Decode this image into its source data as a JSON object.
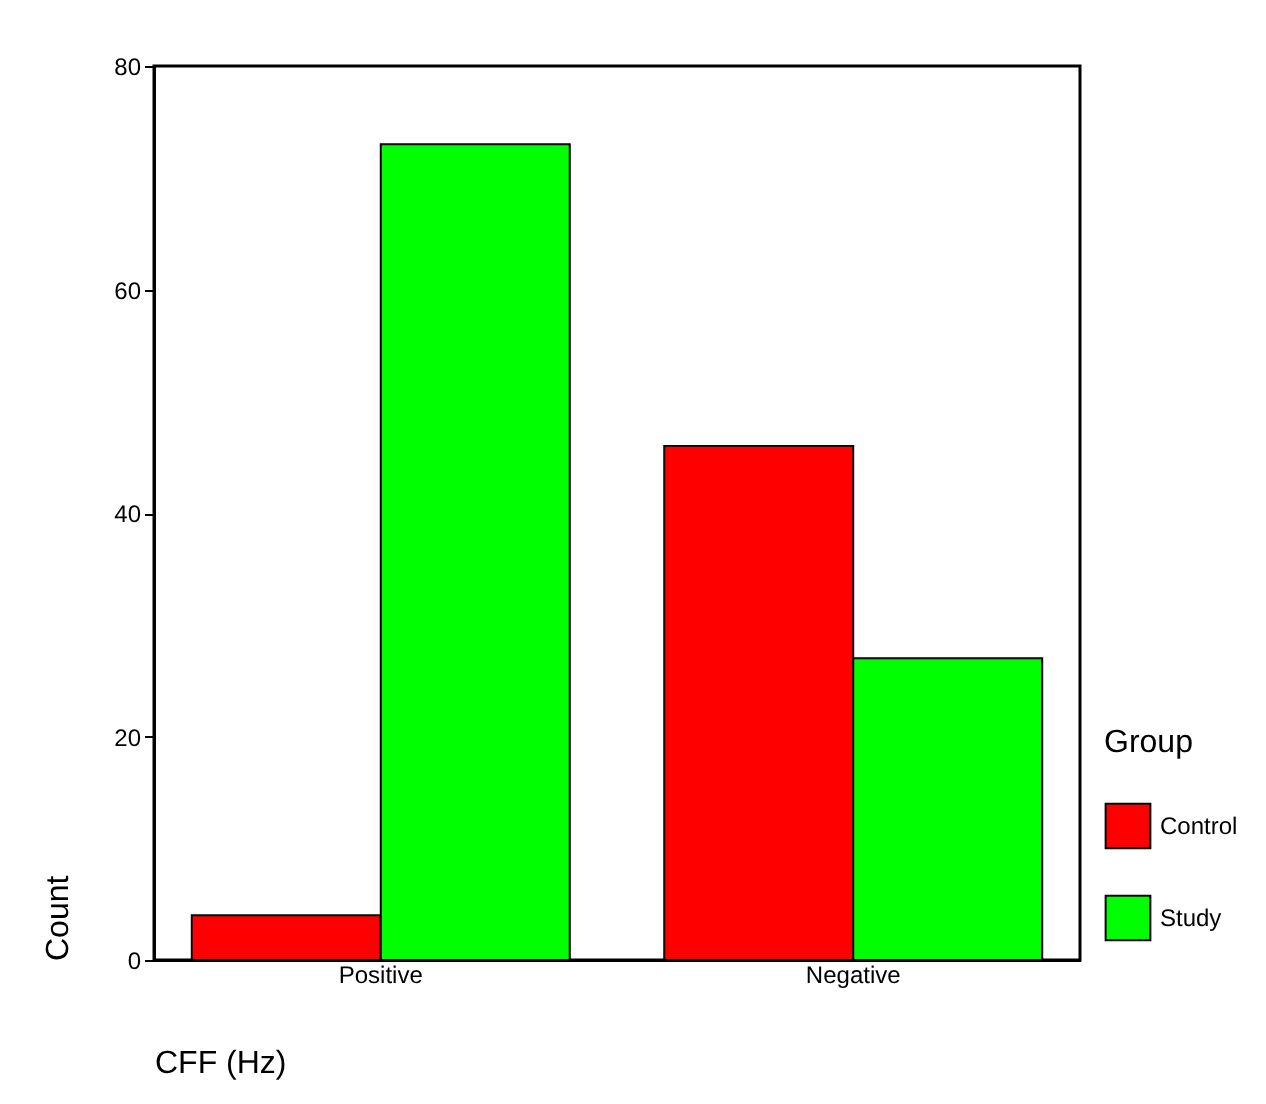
{
  "chart_data": {
    "type": "bar",
    "categories": [
      "Positive",
      "Negative"
    ],
    "xlabel": "CFF (Hz)",
    "ylabel": "Count",
    "legend_title": "Group",
    "series": [
      {
        "name": "Control",
        "color": "#ff0000",
        "values": [
          4,
          46
        ]
      },
      {
        "name": "Study",
        "color": "#00ff00",
        "values": [
          73,
          27
        ]
      }
    ],
    "ylim": [
      0,
      80
    ],
    "yticks": [
      0,
      20,
      40,
      60,
      80
    ],
    "grid": false,
    "legend": "right"
  }
}
